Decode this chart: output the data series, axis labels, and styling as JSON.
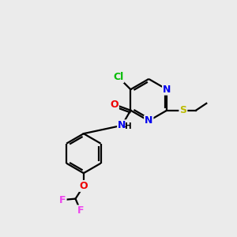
{
  "bg_color": "#ebebeb",
  "atom_colors": {
    "C": "#000000",
    "Cl": "#00bb00",
    "O": "#ee0000",
    "N": "#0000ee",
    "S": "#bbbb00",
    "F": "#ee44ee",
    "H": "#000000"
  },
  "bond_color": "#000000",
  "bond_width": 1.6,
  "fig_bg": "#ebebeb"
}
